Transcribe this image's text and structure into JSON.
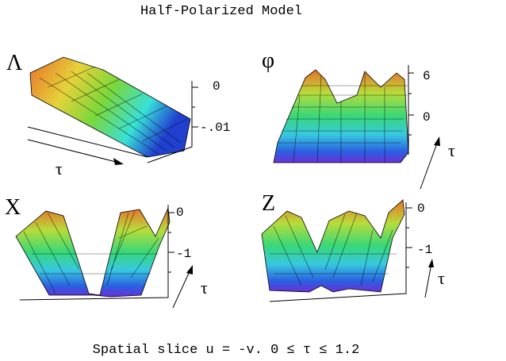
{
  "title": "Half-Polarized Model",
  "panels": [
    {
      "label": "Λ",
      "ticks": [
        "0",
        "-.01"
      ],
      "axis_label": "τ"
    },
    {
      "label": "φ",
      "ticks": [
        "6",
        "0"
      ],
      "axis_label": "τ"
    },
    {
      "label": "X",
      "ticks": [
        "0",
        "-1"
      ],
      "axis_label": "τ"
    },
    {
      "label": "Z",
      "ticks": [
        "0",
        "-1"
      ],
      "axis_label": "τ"
    }
  ],
  "caption": "Spatial slice u = -v. 0 ≤ τ ≤ 1.2"
}
